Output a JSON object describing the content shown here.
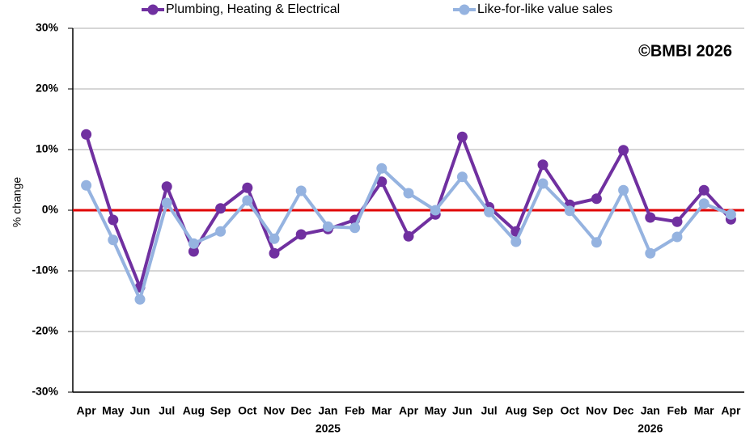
{
  "chart_data": {
    "type": "line",
    "annotation": "©BMBI 2026",
    "y_label": "% change",
    "categories": [
      "Apr",
      "May",
      "Jun",
      "Jul",
      "Aug",
      "Sep",
      "Oct",
      "Nov",
      "Dec",
      "Jan",
      "Feb",
      "Mar",
      "Apr",
      "May",
      "Jun",
      "Jul",
      "Aug",
      "Sep",
      "Oct",
      "Nov",
      "Dec",
      "Jan",
      "Feb",
      "Mar",
      "Apr"
    ],
    "year_labels": [
      null,
      null,
      null,
      null,
      null,
      null,
      null,
      null,
      null,
      "2025",
      null,
      null,
      null,
      null,
      null,
      null,
      null,
      null,
      null,
      null,
      null,
      "2026",
      null,
      null,
      null
    ],
    "series": [
      {
        "name": "Plumbing, Heating & Electrical",
        "color": "#7030a0",
        "values": [
          12.5,
          -1.6,
          -12.7,
          3.9,
          -6.8,
          0.3,
          3.7,
          -7.1,
          -4.0,
          -3.1,
          -1.6,
          4.7,
          -4.3,
          -0.7,
          12.1,
          0.5,
          -3.5,
          7.5,
          0.9,
          1.9,
          9.9,
          -1.2,
          -1.9,
          3.3,
          -1.5
        ]
      },
      {
        "name": "Like-for-like value sales",
        "color": "#95b3e0",
        "values": [
          4.1,
          -4.9,
          -14.7,
          1.2,
          -5.5,
          -3.5,
          1.6,
          -4.7,
          3.2,
          -2.7,
          -2.9,
          6.9,
          2.8,
          0,
          5.5,
          -0.3,
          -5.2,
          4.4,
          -0.1,
          -5.3,
          3.3,
          -7.1,
          -4.4,
          1.1,
          -0.7
        ]
      }
    ],
    "ylim": [
      -30,
      30
    ],
    "yticks": [
      {
        "value": -30,
        "label": "-30%"
      },
      {
        "value": -20,
        "label": "-20%"
      },
      {
        "value": -10,
        "label": "-10%"
      },
      {
        "value": 0,
        "label": "0%"
      },
      {
        "value": 10,
        "label": "10%"
      },
      {
        "value": 20,
        "label": "20%"
      },
      {
        "value": 30,
        "label": "30%"
      }
    ],
    "grid": true,
    "zero_line_color": "#e00000"
  }
}
